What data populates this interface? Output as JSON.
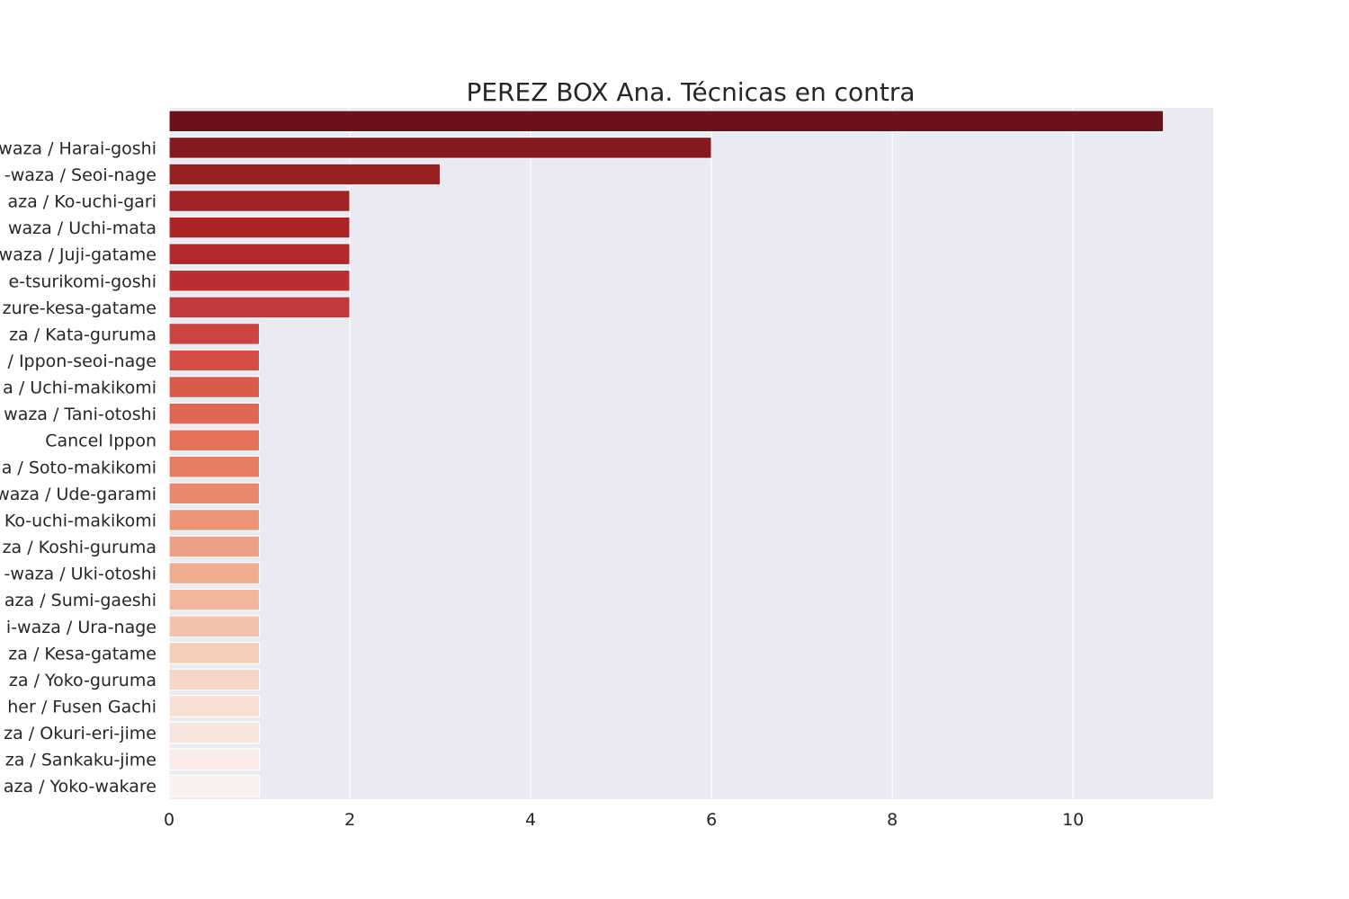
{
  "chart_data": {
    "type": "bar",
    "orientation": "horizontal",
    "title": "PEREZ BOX Ana. Técnicas en contra",
    "xlabel": "",
    "ylabel": "",
    "xlim": [
      0,
      11.55
    ],
    "xticks": [
      0,
      2,
      4,
      6,
      8,
      10
    ],
    "grid": true,
    "categories": [
      "",
      "waza / Harai-goshi",
      "-waza / Seoi-nage",
      "aza / Ko-uchi-gari",
      "waza / Uchi-mata",
      "waza / Juji-gatame",
      "e-tsurikomi-goshi",
      "zure-kesa-gatame",
      "za / Kata-guruma",
      "/ Ippon-seoi-nage",
      "a / Uchi-makikomi",
      "waza / Tani-otoshi",
      "Cancel Ippon",
      "a / Soto-makikomi",
      "waza / Ude-garami",
      "Ko-uchi-makikomi",
      "za / Koshi-guruma",
      "-waza / Uki-otoshi",
      "aza / Sumi-gaeshi",
      "i-waza / Ura-nage",
      "za / Kesa-gatame",
      "za / Yoko-guruma",
      "her / Fusen Gachi",
      "za / Okuri-eri-jime",
      "za / Sankaku-jime",
      "aza / Yoko-wakare"
    ],
    "values": [
      11,
      6,
      3,
      2,
      2,
      2,
      2,
      2,
      1,
      1,
      1,
      1,
      1,
      1,
      1,
      1,
      1,
      1,
      1,
      1,
      1,
      1,
      1,
      1,
      1,
      1
    ],
    "colors": [
      "#6b111c",
      "#871920",
      "#972022",
      "#a12226",
      "#aa2428",
      "#b3282d",
      "#bb2e31",
      "#c3383a",
      "#cc4340",
      "#d44e45",
      "#db5a4c",
      "#e06653",
      "#e47259",
      "#e77d62",
      "#e9886d",
      "#eb9478",
      "#eda083",
      "#efac8f",
      "#f1b79d",
      "#f3c2ab",
      "#f5cdb9",
      "#f6d6c6",
      "#f7dfd3",
      "#f8e6de",
      "#faece6",
      "#fbf1ee"
    ],
    "style": {
      "plot_background": "#eaeaf2",
      "grid_color": "#ffffff",
      "text_color": "#262626"
    }
  }
}
